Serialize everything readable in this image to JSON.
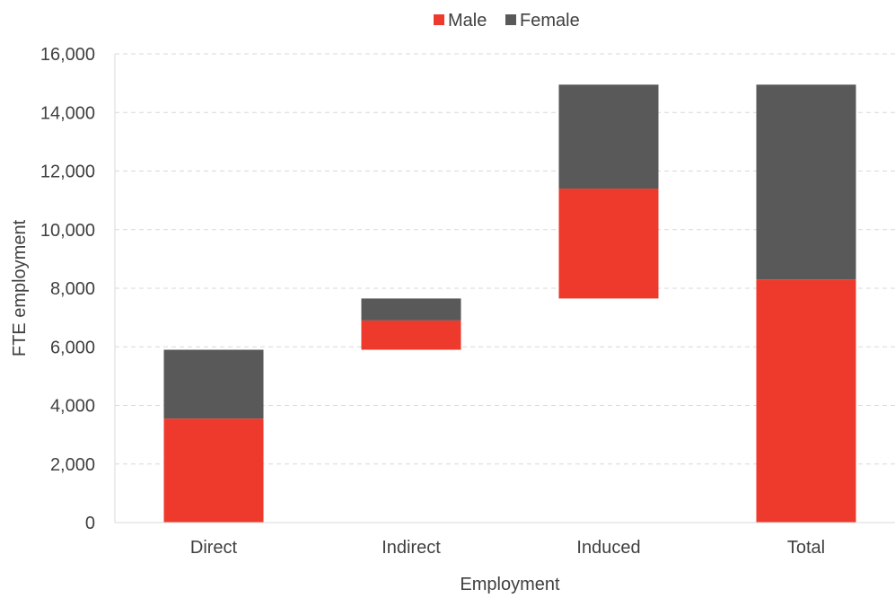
{
  "chart_data": {
    "type": "bar",
    "subtype": "waterfall-stacked",
    "title": "",
    "xlabel": "Employment",
    "ylabel": "FTE  employment",
    "ylim": [
      0,
      16000
    ],
    "yticks": [
      0,
      2000,
      4000,
      6000,
      8000,
      10000,
      12000,
      14000,
      16000
    ],
    "ytick_labels": [
      "0",
      "2,000",
      "4,000",
      "6,000",
      "8,000",
      "10,000",
      "12,000",
      "14,000",
      "16,000"
    ],
    "grid": true,
    "legend_position": "top-center",
    "categories": [
      "Direct",
      "Indirect",
      "Induced",
      "Total"
    ],
    "bar_base": [
      0,
      5900,
      7650,
      0
    ],
    "series": [
      {
        "name": "Male",
        "color": "#ee3a2c",
        "values": [
          3550,
          1000,
          3750,
          8300
        ]
      },
      {
        "name": "Female",
        "color": "#595959",
        "values": [
          2350,
          750,
          3550,
          6650
        ]
      }
    ]
  }
}
